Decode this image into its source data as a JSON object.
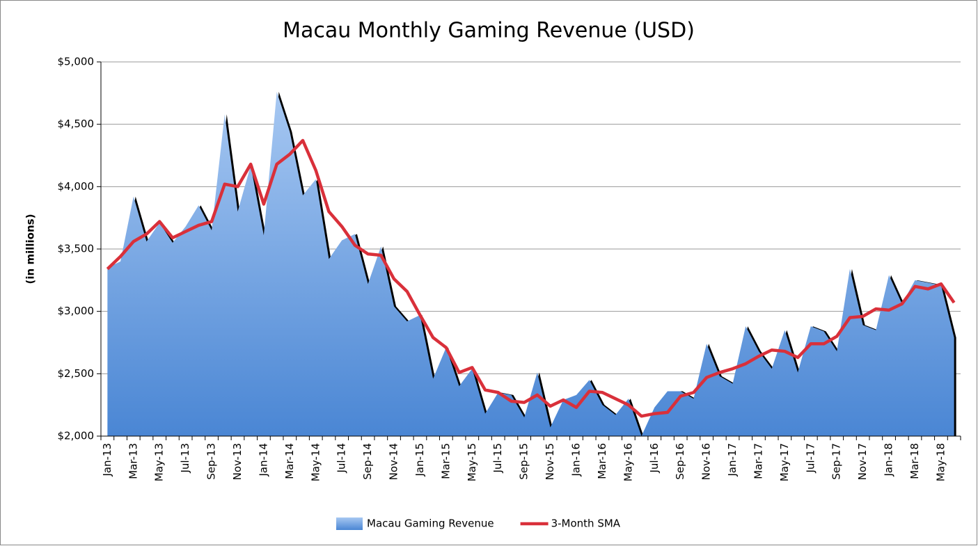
{
  "chart_data": {
    "type": "area-line",
    "title": "Macau Monthly Gaming Revenue (USD)",
    "y_label": "(in millions)",
    "categories": [
      "Jan-13",
      null,
      "Mar-13",
      null,
      "May-13",
      null,
      "Jul-13",
      null,
      "Sep-13",
      null,
      "Nov-13",
      null,
      "Jan-14",
      null,
      "Mar-14",
      null,
      "May-14",
      null,
      "Jul-14",
      null,
      "Sep-14",
      null,
      "Nov-14",
      null,
      "Jan-15",
      null,
      "Mar-15",
      null,
      "May-15",
      null,
      "Jul-15",
      null,
      "Sep-15",
      null,
      "Nov-15",
      null,
      "Jan-16",
      null,
      "Mar-16",
      null,
      "May-16",
      null,
      "Jul-16",
      null,
      "Sep-16",
      null,
      "Nov-16",
      null,
      "Jan-17",
      null,
      "Mar-17",
      null,
      "May-17",
      null,
      "Jul-17",
      null,
      "Sep-17",
      null,
      "Nov-17",
      null,
      "Jan-18",
      null,
      "Mar-18",
      null,
      "May-18",
      null
    ],
    "series": [
      {
        "name": "Macau Gaming Revenue",
        "type": "area",
        "color": "#4a86d4",
        "values": [
          3350,
          3400,
          3920,
          3560,
          3710,
          3550,
          3680,
          3850,
          3650,
          4580,
          3800,
          4170,
          3610,
          4760,
          4440,
          3930,
          4060,
          3420,
          3570,
          3620,
          3220,
          3520,
          3040,
          2920,
          2970,
          2460,
          2710,
          2400,
          2540,
          2180,
          2350,
          2330,
          2150,
          2510,
          2070,
          2290,
          2330,
          2450,
          2250,
          2170,
          2300,
          2000,
          2230,
          2360,
          2360,
          2300,
          2740,
          2480,
          2420,
          2880,
          2680,
          2540,
          2850,
          2510,
          2880,
          2840,
          2680,
          3340,
          2890,
          2850,
          3290,
          3060,
          3250,
          3230,
          3210,
          2790
        ]
      },
      {
        "name": "3-Month SMA",
        "type": "line",
        "color": "#d9303a",
        "values": [
          3340,
          3440,
          3560,
          3620,
          3720,
          3590,
          3640,
          3690,
          3720,
          4020,
          4000,
          4180,
          3860,
          4180,
          4260,
          4370,
          4130,
          3800,
          3680,
          3530,
          3460,
          3450,
          3260,
          3160,
          2970,
          2790,
          2710,
          2510,
          2550,
          2370,
          2350,
          2280,
          2270,
          2330,
          2240,
          2290,
          2230,
          2360,
          2350,
          2300,
          2250,
          2160,
          2180,
          2190,
          2320,
          2350,
          2470,
          2510,
          2540,
          2580,
          2640,
          2690,
          2680,
          2630,
          2740,
          2740,
          2800,
          2950,
          2960,
          3020,
          3010,
          3060,
          3200,
          3180,
          3220,
          3070
        ]
      }
    ],
    "ylim": [
      2000,
      5000
    ],
    "yticks": [
      {
        "value": 2000,
        "label": "$2,000"
      },
      {
        "value": 2500,
        "label": "$2,500"
      },
      {
        "value": 3000,
        "label": "$3,000"
      },
      {
        "value": 3500,
        "label": "$3,500"
      },
      {
        "value": 4000,
        "label": "$4,000"
      },
      {
        "value": 4500,
        "label": "$4,500"
      },
      {
        "value": 5000,
        "label": "$5,000"
      }
    ],
    "grid": true,
    "legend": "bottom"
  }
}
